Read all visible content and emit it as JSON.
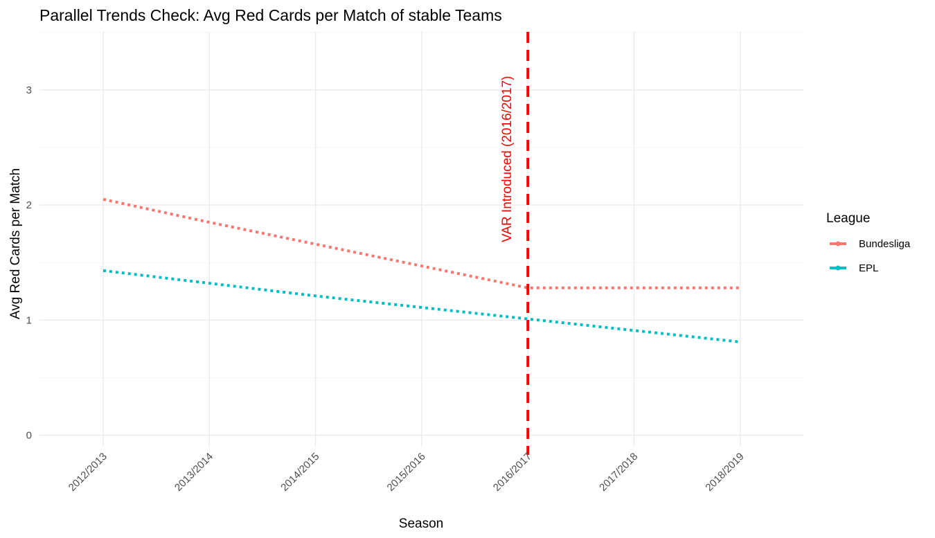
{
  "chart_data": {
    "type": "line",
    "title": "Parallel Trends Check: Avg Red Cards per Match of stable Teams",
    "xlabel": "Season",
    "ylabel": "Avg Red Cards per Match",
    "categories": [
      "2012/2013",
      "2013/2014",
      "2014/2015",
      "2015/2016",
      "2016/2017",
      "2017/2018",
      "2018/2019"
    ],
    "ylim": [
      -0.15,
      3.5
    ],
    "yticks": [
      0,
      1,
      2,
      3
    ],
    "grid": true,
    "line_style": "dotted",
    "legend": {
      "title": "League",
      "position": "right"
    },
    "series": [
      {
        "name": "Bundesliga",
        "color": "#F8766D",
        "values": [
          2.05,
          1.85,
          1.66,
          1.47,
          1.28,
          1.28,
          1.28
        ]
      },
      {
        "name": "EPL",
        "color": "#00BFC4",
        "values": [
          1.43,
          1.32,
          1.21,
          1.11,
          1.01,
          0.91,
          0.81
        ]
      }
    ],
    "annotations": [
      {
        "type": "vline",
        "x": "2016/2017",
        "color": "#FF0000",
        "style": "dashed",
        "label": "VAR Introduced (2016/2017)"
      }
    ]
  }
}
